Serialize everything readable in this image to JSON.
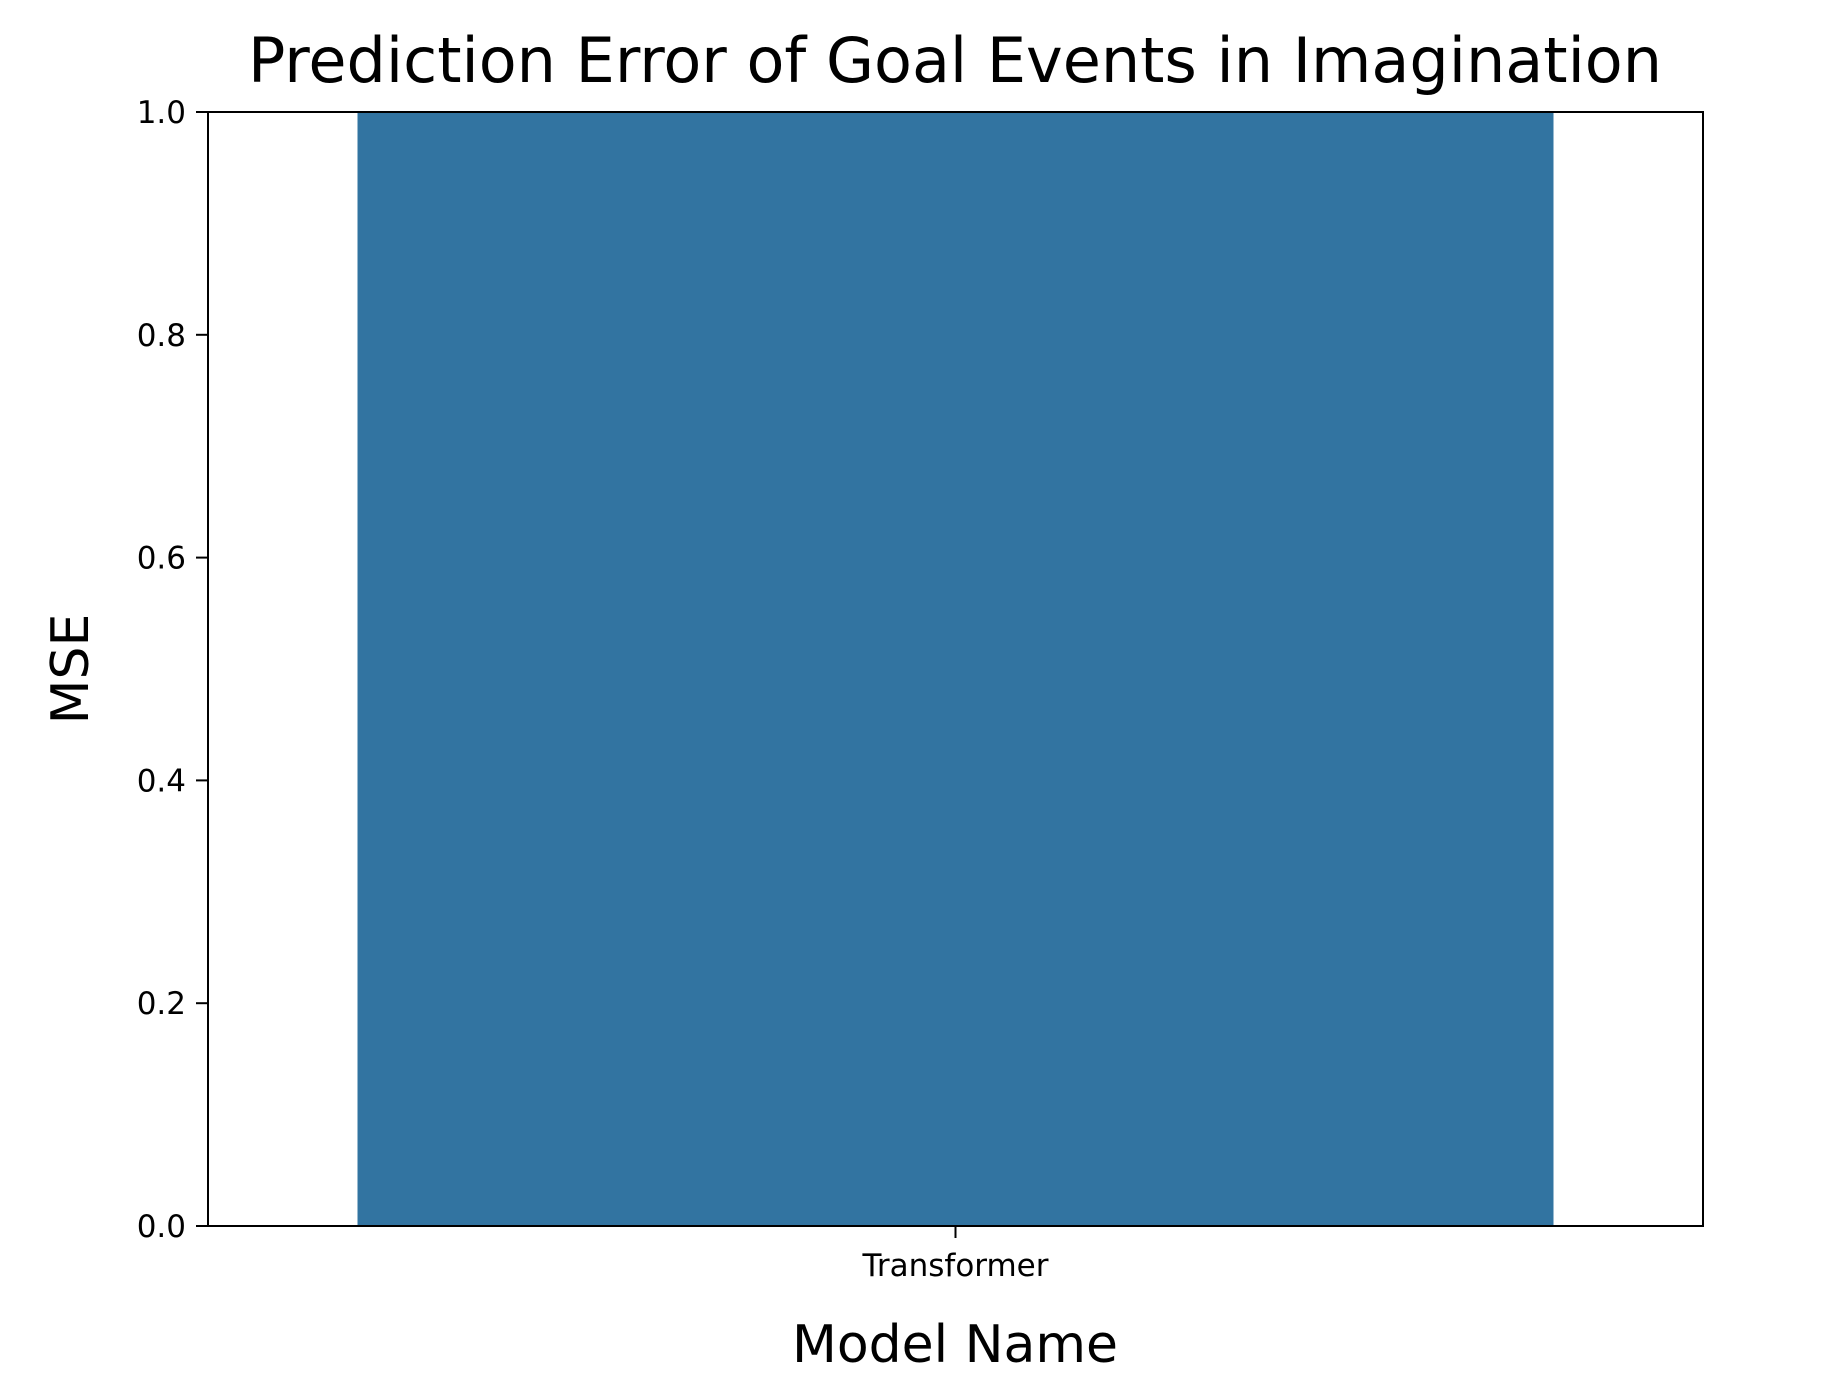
{
  "chart_data": {
    "type": "bar",
    "title": "Prediction Error of Goal Events in Imagination",
    "xlabel": "Model Name",
    "ylabel": "MSE",
    "categories": [
      "Transformer"
    ],
    "values": [
      1.0
    ],
    "ylim": [
      0.0,
      1.0
    ],
    "yticks": [
      "0.0",
      "0.2",
      "0.4",
      "0.6",
      "0.8",
      "1.0"
    ],
    "bar_color": "#3274a1",
    "grid": false,
    "legend": false
  }
}
